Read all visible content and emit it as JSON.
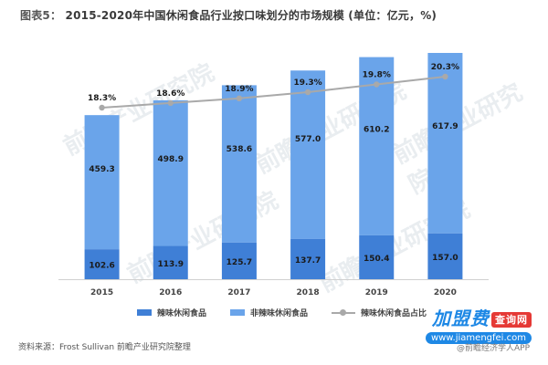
{
  "chart_data": {
    "type": "bar",
    "stacked": true,
    "title_prefix": "图表5：",
    "title": "2015-2020年中国休闲食品行业按口味划分的市场规模 (单位：亿元，%)",
    "categories": [
      "2015",
      "2016",
      "2017",
      "2018",
      "2019",
      "2020"
    ],
    "series": [
      {
        "name": "辣味休闲食品",
        "values": [
          102.6,
          113.9,
          125.7,
          137.7,
          150.4,
          157.0
        ],
        "color": "#3f7fd6"
      },
      {
        "name": "非辣味休闲食品",
        "values": [
          459.3,
          498.9,
          538.6,
          577.0,
          610.2,
          617.9
        ],
        "color": "#6aa4ea"
      },
      {
        "name": "辣味休闲食品占比",
        "type": "line",
        "values": [
          18.3,
          18.6,
          18.9,
          19.3,
          19.8,
          20.3
        ],
        "value_labels": [
          "18.3%",
          "18.6%",
          "18.9%",
          "19.3%",
          "19.8%",
          "20.3%"
        ],
        "color": "#a9a9a9"
      }
    ],
    "bar_label_color": "#1a1a1a",
    "legend_position": "bottom",
    "grid": false
  },
  "source": "资料来源：Frost Sullivan 前瞻产业研究院整理",
  "watermark_text": "前瞻产业研究院",
  "brand": {
    "name": "加盟费",
    "pill": "查询网",
    "url": "www.jiamengfei.com"
  },
  "app_mark": "@前瞻经济学人APP"
}
